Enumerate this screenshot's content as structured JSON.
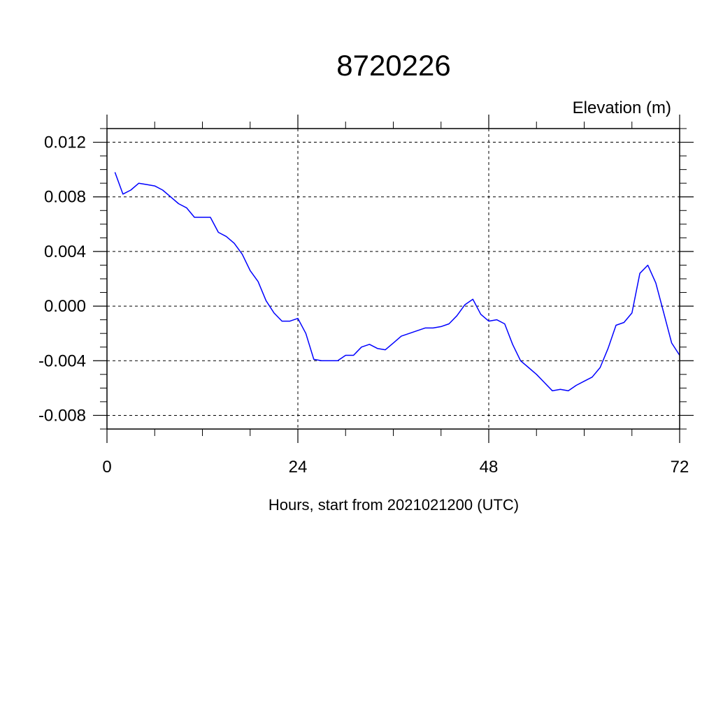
{
  "chart_data": {
    "type": "line",
    "title": "8720226",
    "ylabel": "Elevation (m)",
    "xlabel": "Hours, start from 2021021200 (UTC)",
    "xlim": [
      0,
      72
    ],
    "ylim": [
      -0.009,
      0.013
    ],
    "x_ticks": [
      0,
      24,
      48,
      72
    ],
    "x_tick_labels": [
      "0",
      "24",
      "48",
      "72"
    ],
    "y_ticks": [
      0.012,
      0.008,
      0.004,
      0.0,
      -0.004,
      -0.008
    ],
    "y_tick_labels": [
      "0.012",
      "0.008",
      "0.004",
      "0.000",
      "-0.004",
      "-0.008"
    ],
    "grid": true,
    "series": [
      {
        "color": "#0000ff",
        "x": [
          1,
          2,
          3,
          4,
          5,
          6,
          7,
          8,
          9,
          10,
          11,
          12,
          13,
          14,
          15,
          16,
          17,
          18,
          19,
          20,
          21,
          22,
          23,
          24,
          25,
          26,
          27,
          28,
          29,
          30,
          31,
          32,
          33,
          34,
          35,
          36,
          37,
          38,
          39,
          40,
          41,
          42,
          43,
          44,
          45,
          46,
          47,
          48,
          49,
          50,
          51,
          52,
          53,
          54,
          55,
          56,
          57,
          58,
          59,
          60,
          61,
          62,
          63,
          64,
          65,
          66,
          67,
          68,
          69,
          70,
          71,
          72
        ],
        "values": [
          0.0098,
          0.0082,
          0.0085,
          0.009,
          0.0089,
          0.0088,
          0.0085,
          0.008,
          0.0075,
          0.0072,
          0.0065,
          0.0065,
          0.0065,
          0.0054,
          0.0051,
          0.0046,
          0.0038,
          0.0026,
          0.0018,
          0.0004,
          -0.0005,
          -0.0011,
          -0.0011,
          -0.0009,
          -0.002,
          -0.0039,
          -0.004,
          -0.004,
          -0.004,
          -0.0036,
          -0.0036,
          -0.003,
          -0.0028,
          -0.0031,
          -0.0032,
          -0.0027,
          -0.0022,
          -0.002,
          -0.0018,
          -0.0016,
          -0.0016,
          -0.0015,
          -0.0013,
          -0.0007,
          0.0001,
          0.0005,
          -0.0006,
          -0.0011,
          -0.001,
          -0.0013,
          -0.0028,
          -0.004,
          -0.0045,
          -0.005,
          -0.0056,
          -0.0062,
          -0.0061,
          -0.0062,
          -0.0058,
          -0.0055,
          -0.0052,
          -0.0045,
          -0.0031,
          -0.0014,
          -0.0012,
          -0.0005,
          0.0024,
          0.003,
          0.0017,
          -0.0005,
          -0.0027,
          -0.0036
        ]
      }
    ]
  }
}
